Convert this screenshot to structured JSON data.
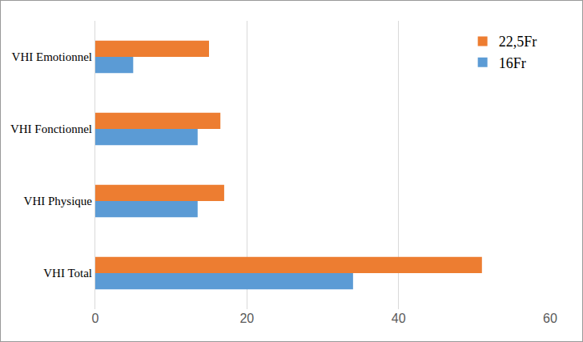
{
  "chart_data": {
    "type": "bar",
    "orientation": "horizontal",
    "categories": [
      "VHI Total",
      "VHI Physique",
      "VHI Fonctionnel",
      "VHI Emotionnel"
    ],
    "series": [
      {
        "name": "16Fr",
        "color": "#5b9bd5",
        "values": [
          34,
          13.5,
          13.5,
          5
        ]
      },
      {
        "name": "22,5Fr",
        "color": "#ed7d31",
        "values": [
          51,
          17,
          16.5,
          15
        ]
      }
    ],
    "xlim": [
      0,
      60
    ],
    "xticks": [
      0,
      20,
      40,
      60
    ],
    "grid": true,
    "legend": "top right"
  }
}
